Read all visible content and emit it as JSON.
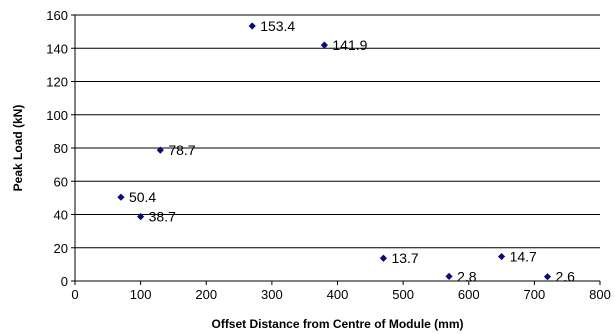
{
  "chart_data": {
    "type": "scatter",
    "title": "",
    "xlabel": "Offset Distance from Centre of Module (mm)",
    "ylabel": "Peak Load (kN)",
    "xlim": [
      0,
      800
    ],
    "ylim": [
      0,
      160
    ],
    "xticks": [
      0,
      100,
      200,
      300,
      400,
      500,
      600,
      700,
      800
    ],
    "yticks": [
      0,
      20,
      40,
      60,
      80,
      100,
      120,
      140,
      160
    ],
    "grid": "horizontal",
    "legend": "none",
    "marker": "diamond",
    "marker_color": "#0a0a7a",
    "points": [
      {
        "x": 70,
        "y": 50.4,
        "label": "50.4"
      },
      {
        "x": 100,
        "y": 38.7,
        "label": "38.7"
      },
      {
        "x": 130,
        "y": 78.7,
        "label": "78.7"
      },
      {
        "x": 270,
        "y": 153.4,
        "label": "153.4"
      },
      {
        "x": 380,
        "y": 141.9,
        "label": "141.9"
      },
      {
        "x": 470,
        "y": 13.7,
        "label": "13.7"
      },
      {
        "x": 570,
        "y": 2.8,
        "label": "2.8"
      },
      {
        "x": 650,
        "y": 14.7,
        "label": "14.7"
      },
      {
        "x": 720,
        "y": 2.6,
        "label": "2.6"
      }
    ]
  }
}
